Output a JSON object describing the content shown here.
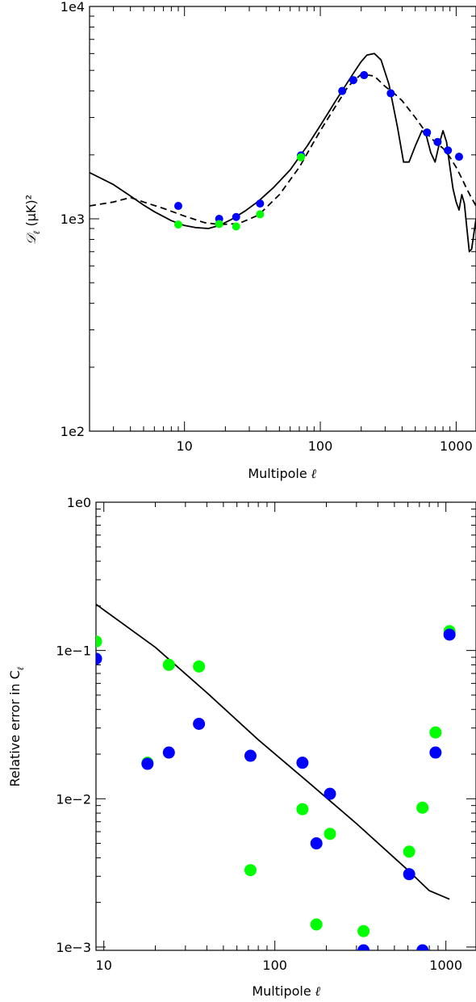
{
  "chart_data": [
    {
      "type": "line",
      "title": "",
      "xlabel": "Multipole",
      "xlabel_symbol": "ℓ",
      "ylabel": "𝒟",
      "ylabel_subscript": "ℓ",
      "ylabel_units": "(μK)²",
      "x_scale": "log",
      "y_scale": "log",
      "xlim": [
        2,
        1400
      ],
      "ylim": [
        100,
        10000
      ],
      "x_ticks": [
        10,
        100,
        1000
      ],
      "x_tick_labels": [
        "10",
        "100",
        "1000"
      ],
      "y_ticks": [
        100,
        1000,
        10000
      ],
      "y_tick_labels": [
        "1e2",
        "1e3",
        "1e4"
      ],
      "grid": false,
      "series": [
        {
          "style": "solid",
          "color": "#000000",
          "x": [
            2,
            3,
            4,
            5,
            6,
            8,
            10,
            12,
            15,
            18,
            22,
            28,
            35,
            45,
            60,
            80,
            100,
            130,
            170,
            200,
            220,
            250,
            280,
            320,
            370,
            410,
            450,
            500,
            560,
            600,
            650,
            700,
            750,
            800,
            850,
            900,
            950,
            1000,
            1050,
            1100,
            1150,
            1200,
            1250,
            1300,
            1400
          ],
          "y": [
            1650,
            1450,
            1280,
            1160,
            1080,
            980,
            930,
            910,
            900,
            930,
            990,
            1090,
            1210,
            1400,
            1700,
            2200,
            2750,
            3600,
            4700,
            5500,
            5900,
            6000,
            5600,
            4300,
            2700,
            1850,
            1850,
            2200,
            2600,
            2500,
            2050,
            1850,
            2250,
            2600,
            2300,
            1750,
            1380,
            1200,
            1100,
            1300,
            1180,
            900,
            700,
            720,
            1000
          ]
        },
        {
          "style": "dashed",
          "color": "#000000",
          "x": [
            2,
            3,
            4,
            5,
            7,
            10,
            14,
            18,
            25,
            35,
            50,
            70,
            100,
            130,
            160,
            200,
            250,
            300,
            350,
            400,
            500,
            600,
            700,
            800,
            900,
            1000,
            1100,
            1200,
            1300,
            1400
          ],
          "y": [
            1150,
            1200,
            1260,
            1200,
            1120,
            1030,
            960,
            940,
            950,
            1040,
            1300,
            1750,
            2600,
            3400,
            4200,
            4800,
            4700,
            4200,
            3900,
            3600,
            3000,
            2550,
            2300,
            2150,
            1950,
            1750,
            1550,
            1380,
            1250,
            1150
          ]
        }
      ],
      "points": [
        {
          "x": 9,
          "y": 1150,
          "color": "#0000ff"
        },
        {
          "x": 9,
          "y": 940,
          "color": "#00ff00"
        },
        {
          "x": 18,
          "y": 1000,
          "color": "#0000ff"
        },
        {
          "x": 18,
          "y": 945,
          "color": "#00ff00"
        },
        {
          "x": 24,
          "y": 1020,
          "color": "#0000ff"
        },
        {
          "x": 24,
          "y": 920,
          "color": "#00ff00"
        },
        {
          "x": 36,
          "y": 1180,
          "color": "#0000ff"
        },
        {
          "x": 36,
          "y": 1050,
          "color": "#00ff00"
        },
        {
          "x": 72,
          "y": 1990,
          "color": "#0000ff"
        },
        {
          "x": 72,
          "y": 1950,
          "color": "#00ff00"
        },
        {
          "x": 145,
          "y": 4000,
          "color": "#00ff00"
        },
        {
          "x": 145,
          "y": 4000,
          "color": "#0000ff"
        },
        {
          "x": 175,
          "y": 4500,
          "color": "#00ff00"
        },
        {
          "x": 175,
          "y": 4500,
          "color": "#0000ff"
        },
        {
          "x": 210,
          "y": 4750,
          "color": "#00ff00"
        },
        {
          "x": 210,
          "y": 4750,
          "color": "#0000ff"
        },
        {
          "x": 330,
          "y": 3900,
          "color": "#00ff00"
        },
        {
          "x": 330,
          "y": 3900,
          "color": "#0000ff"
        },
        {
          "x": 610,
          "y": 2550,
          "color": "#00ff00"
        },
        {
          "x": 610,
          "y": 2550,
          "color": "#0000ff"
        },
        {
          "x": 730,
          "y": 2300,
          "color": "#00ff00"
        },
        {
          "x": 730,
          "y": 2300,
          "color": "#0000ff"
        },
        {
          "x": 870,
          "y": 2100,
          "color": "#00ff00"
        },
        {
          "x": 870,
          "y": 2100,
          "color": "#0000ff"
        },
        {
          "x": 1050,
          "y": 1960,
          "color": "#00ff00"
        },
        {
          "x": 1050,
          "y": 1960,
          "color": "#0000ff"
        }
      ]
    },
    {
      "type": "scatter",
      "title": "",
      "xlabel": "Multipole",
      "xlabel_symbol": "ℓ",
      "ylabel": "Relative error in C",
      "ylabel_subscript": "ℓ",
      "x_scale": "log",
      "y_scale": "log",
      "xlim": [
        9,
        1500
      ],
      "ylim": [
        0.00095,
        1.0
      ],
      "x_ticks": [
        10,
        100,
        1000
      ],
      "x_tick_labels": [
        "10",
        "100",
        "1000"
      ],
      "y_ticks": [
        0.001,
        0.01,
        0.1,
        1.0
      ],
      "y_tick_labels": [
        "1e−3",
        "1e−2",
        "1e−1",
        "1e0"
      ],
      "grid": false,
      "line": {
        "color": "#000000",
        "x": [
          9,
          20,
          40,
          80,
          150,
          300,
          600,
          800,
          1050
        ],
        "y": [
          0.205,
          0.105,
          0.052,
          0.025,
          0.0135,
          0.0068,
          0.0033,
          0.0024,
          0.0021
        ]
      },
      "points": [
        {
          "x": 9,
          "y": 0.115,
          "color": "#00ff00"
        },
        {
          "x": 9,
          "y": 0.088,
          "color": "#0000ff"
        },
        {
          "x": 18,
          "y": 0.0175,
          "color": "#00ff00"
        },
        {
          "x": 18,
          "y": 0.0172,
          "color": "#0000ff"
        },
        {
          "x": 24,
          "y": 0.0205,
          "color": "#0000ff"
        },
        {
          "x": 24,
          "y": 0.08,
          "color": "#00ff00"
        },
        {
          "x": 36,
          "y": 0.032,
          "color": "#0000ff"
        },
        {
          "x": 36,
          "y": 0.078,
          "color": "#00ff00"
        },
        {
          "x": 72,
          "y": 0.0195,
          "color": "#0000ff"
        },
        {
          "x": 72,
          "y": 0.0033,
          "color": "#00ff00"
        },
        {
          "x": 145,
          "y": 0.0175,
          "color": "#0000ff"
        },
        {
          "x": 145,
          "y": 0.0085,
          "color": "#00ff00"
        },
        {
          "x": 175,
          "y": 0.005,
          "color": "#0000ff"
        },
        {
          "x": 175,
          "y": 0.00142,
          "color": "#00ff00"
        },
        {
          "x": 210,
          "y": 0.0108,
          "color": "#0000ff"
        },
        {
          "x": 210,
          "y": 0.0058,
          "color": "#00ff00"
        },
        {
          "x": 330,
          "y": 0.00128,
          "color": "#00ff00"
        },
        {
          "x": 330,
          "y": 0.00095,
          "color": "#0000ff"
        },
        {
          "x": 610,
          "y": 0.0044,
          "color": "#00ff00"
        },
        {
          "x": 610,
          "y": 0.0031,
          "color": "#0000ff"
        },
        {
          "x": 730,
          "y": 0.0087,
          "color": "#00ff00"
        },
        {
          "x": 730,
          "y": 0.00095,
          "color": "#0000ff"
        },
        {
          "x": 870,
          "y": 0.028,
          "color": "#00ff00"
        },
        {
          "x": 870,
          "y": 0.0205,
          "color": "#0000ff"
        },
        {
          "x": 1050,
          "y": 0.135,
          "color": "#00ff00"
        },
        {
          "x": 1050,
          "y": 0.128,
          "color": "#0000ff"
        }
      ]
    }
  ]
}
